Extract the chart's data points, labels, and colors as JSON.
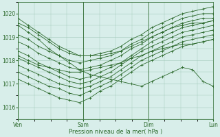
{
  "title": "",
  "xlabel": "Pression niveau de la mer( hPa )",
  "ylabel": "",
  "bg_color": "#d8eeea",
  "plot_bg_color": "#d8eeea",
  "line_color": "#2d6a2d",
  "marker_color": "#2d6a2d",
  "grid_color": "#a0c8b8",
  "tick_color": "#2d6a2d",
  "label_color": "#2d6a2d",
  "ylim": [
    1015.5,
    1020.5
  ],
  "yticks": [
    1016,
    1017,
    1018,
    1019,
    1020
  ],
  "day_positions": [
    0,
    96,
    192,
    288
  ],
  "day_labels": [
    "Ven",
    "Sam",
    "Dim",
    "Lun"
  ],
  "xlim": [
    0,
    288
  ],
  "series": [
    [
      1019.6,
      1019.4,
      1019.1,
      1018.8,
      1018.5,
      1018.3,
      1018.2,
      1018.2,
      1018.3,
      1018.4,
      1018.6,
      1018.9,
      1019.1,
      1019.4,
      1019.6,
      1019.8,
      1020.0,
      1020.1,
      1020.2,
      1020.3
    ],
    [
      1019.1,
      1018.9,
      1018.6,
      1018.4,
      1018.2,
      1018.0,
      1017.9,
      1018.0,
      1018.1,
      1018.2,
      1018.4,
      1018.7,
      1018.9,
      1019.2,
      1019.4,
      1019.6,
      1019.8,
      1019.9,
      1020.0,
      1020.0
    ],
    [
      1018.8,
      1018.6,
      1018.3,
      1018.1,
      1017.9,
      1017.7,
      1017.6,
      1017.7,
      1017.8,
      1018.0,
      1018.2,
      1018.5,
      1018.7,
      1019.0,
      1019.2,
      1019.4,
      1019.6,
      1019.7,
      1019.8,
      1019.8
    ],
    [
      1018.4,
      1018.2,
      1017.9,
      1017.7,
      1017.5,
      1017.3,
      1017.2,
      1017.3,
      1017.5,
      1017.7,
      1017.9,
      1018.2,
      1018.5,
      1018.8,
      1019.0,
      1019.2,
      1019.4,
      1019.5,
      1019.6,
      1019.7
    ],
    [
      1018.1,
      1017.9,
      1017.7,
      1017.5,
      1017.3,
      1017.1,
      1017.0,
      1017.1,
      1017.3,
      1017.5,
      1017.8,
      1018.1,
      1018.4,
      1018.6,
      1018.8,
      1019.0,
      1019.2,
      1019.3,
      1019.4,
      1019.5
    ],
    [
      1017.8,
      1017.6,
      1017.4,
      1017.2,
      1017.0,
      1016.9,
      1016.8,
      1016.9,
      1017.1,
      1017.3,
      1017.6,
      1017.9,
      1018.2,
      1018.4,
      1018.6,
      1018.8,
      1019.0,
      1019.1,
      1019.2,
      1019.3
    ],
    [
      1017.5,
      1017.3,
      1017.1,
      1016.9,
      1016.8,
      1016.6,
      1016.5,
      1016.7,
      1016.9,
      1017.1,
      1017.4,
      1017.7,
      1018.0,
      1018.2,
      1018.4,
      1018.6,
      1018.8,
      1018.9,
      1019.0,
      1019.1
    ],
    [
      1017.2,
      1017.0,
      1016.8,
      1016.6,
      1016.4,
      1016.3,
      1016.2,
      1016.4,
      1016.7,
      1016.9,
      1017.2,
      1017.5,
      1017.8,
      1018.0,
      1018.2,
      1018.4,
      1018.6,
      1018.7,
      1018.8,
      1018.9
    ],
    [
      1019.5,
      1019.2,
      1018.9,
      1018.5,
      1018.2,
      1017.9,
      1017.6,
      1017.4,
      1017.3,
      1017.2,
      1017.1,
      1017.0,
      1016.9,
      1017.1,
      1017.3,
      1017.5,
      1017.7,
      1017.6,
      1017.1,
      1016.9
    ],
    [
      1018.2,
      1018.0,
      1017.8,
      1017.7,
      1017.6,
      1017.5,
      1017.5,
      1017.6,
      1017.7,
      1017.8,
      1017.9,
      1018.1,
      1018.2,
      1018.4,
      1018.5,
      1018.6,
      1018.7,
      1018.7,
      1018.8,
      1018.9
    ],
    [
      1019.8,
      1019.5,
      1019.2,
      1018.9,
      1018.6,
      1018.4,
      1018.2,
      1018.2,
      1018.2,
      1018.3,
      1018.4,
      1018.6,
      1018.8,
      1019.0,
      1019.2,
      1019.4,
      1019.5,
      1019.6,
      1019.6,
      1019.7
    ]
  ],
  "n_points": 20
}
